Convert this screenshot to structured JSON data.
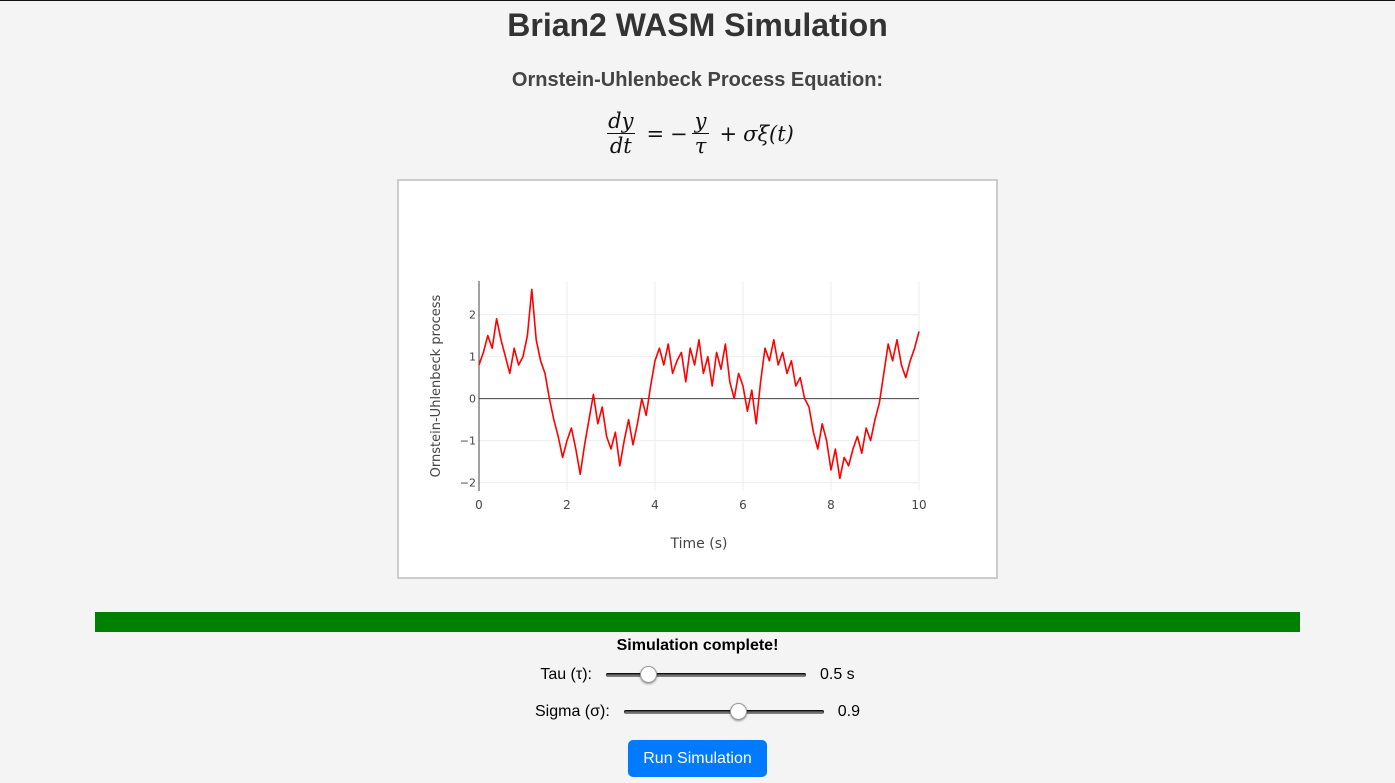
{
  "page": {
    "title": "Brian2 WASM Simulation"
  },
  "equation": {
    "heading": "Ornstein-Uhlenbeck Process Equation:",
    "lhs_num": "dy",
    "lhs_den": "dt",
    "equals": "=",
    "minus": "−",
    "frac_num": "y",
    "frac_den": "τ",
    "plus": "+",
    "tail": "σξ(t)"
  },
  "chart_data": {
    "type": "line",
    "title": "",
    "xlabel": "Time (s)",
    "ylabel": "Ornstein-Uhlenbeck process",
    "xlim": [
      0,
      10
    ],
    "ylim": [
      -2.2,
      2.8
    ],
    "xticks": [
      0,
      2,
      4,
      6,
      8,
      10
    ],
    "yticks": [
      -2,
      -1,
      0,
      1,
      2
    ],
    "ytick_labels": [
      "−2",
      "−1",
      "0",
      "1",
      "2"
    ],
    "grid": true,
    "zero_line": true,
    "series": [
      {
        "color": "#ff0000",
        "x": [
          0,
          0.1,
          0.2,
          0.3,
          0.4,
          0.5,
          0.6,
          0.7,
          0.8,
          0.9,
          1.0,
          1.1,
          1.2,
          1.3,
          1.4,
          1.5,
          1.6,
          1.7,
          1.8,
          1.9,
          2.0,
          2.1,
          2.2,
          2.3,
          2.4,
          2.5,
          2.6,
          2.7,
          2.8,
          2.9,
          3.0,
          3.1,
          3.2,
          3.3,
          3.4,
          3.5,
          3.6,
          3.7,
          3.8,
          3.9,
          4.0,
          4.1,
          4.2,
          4.3,
          4.4,
          4.5,
          4.6,
          4.7,
          4.8,
          4.9,
          5.0,
          5.1,
          5.2,
          5.3,
          5.4,
          5.5,
          5.6,
          5.7,
          5.8,
          5.9,
          6.0,
          6.1,
          6.2,
          6.3,
          6.4,
          6.5,
          6.6,
          6.7,
          6.8,
          6.9,
          7.0,
          7.1,
          7.2,
          7.3,
          7.4,
          7.5,
          7.6,
          7.7,
          7.8,
          7.9,
          8.0,
          8.1,
          8.2,
          8.3,
          8.4,
          8.5,
          8.6,
          8.7,
          8.8,
          8.9,
          9.0,
          9.1,
          9.2,
          9.3,
          9.4,
          9.5,
          9.6,
          9.7,
          9.8,
          9.9,
          10.0
        ],
        "y": [
          0.8,
          1.1,
          1.5,
          1.2,
          1.9,
          1.4,
          1.0,
          0.6,
          1.2,
          0.8,
          1.0,
          1.5,
          2.6,
          1.4,
          0.9,
          0.6,
          0.0,
          -0.5,
          -0.9,
          -1.4,
          -1.0,
          -0.7,
          -1.2,
          -1.8,
          -1.1,
          -0.5,
          0.1,
          -0.6,
          -0.2,
          -0.9,
          -1.2,
          -0.8,
          -1.6,
          -1.0,
          -0.5,
          -1.1,
          -0.6,
          0.0,
          -0.4,
          0.3,
          0.9,
          1.2,
          0.8,
          1.3,
          0.6,
          0.9,
          1.1,
          0.4,
          1.2,
          0.8,
          1.4,
          0.6,
          1.0,
          0.3,
          1.1,
          0.7,
          1.3,
          0.4,
          0.0,
          0.6,
          0.3,
          -0.3,
          0.2,
          -0.6,
          0.4,
          1.2,
          0.9,
          1.4,
          0.8,
          1.1,
          0.6,
          0.9,
          0.3,
          0.5,
          0.0,
          -0.2,
          -0.8,
          -1.2,
          -0.6,
          -1.0,
          -1.7,
          -1.2,
          -1.9,
          -1.4,
          -1.6,
          -1.2,
          -0.9,
          -1.3,
          -0.7,
          -1.0,
          -0.5,
          -0.1,
          0.6,
          1.3,
          0.9,
          1.4,
          0.8,
          0.5,
          0.9,
          1.2,
          1.6
        ]
      }
    ]
  },
  "progress": {
    "value": 1.0,
    "color": "#008000"
  },
  "status": {
    "text": "Simulation complete!"
  },
  "controls": {
    "tau": {
      "label": "Tau (τ):",
      "value": 0.5,
      "min": 0.1,
      "max": 2.0,
      "display": "0.5 s"
    },
    "sigma": {
      "label": "Sigma (σ):",
      "value": 0.9,
      "min": 0.1,
      "max": 1.5,
      "display": "0.9"
    }
  },
  "run_button": {
    "label": "Run Simulation",
    "color": "#007bff"
  }
}
